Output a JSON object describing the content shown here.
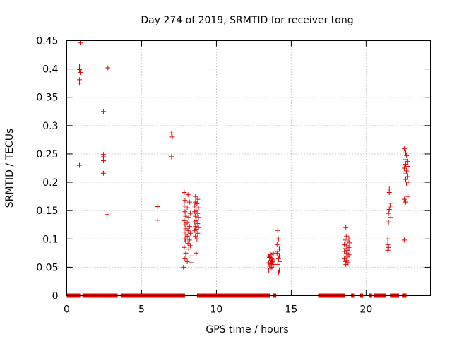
{
  "chart_data": {
    "type": "scatter",
    "title": "Day 274 of 2019, SRMTID for receiver tong",
    "xlabel": "GPS time / hours",
    "ylabel": "SRMTID / TECUs",
    "xlim": [
      0,
      24.3
    ],
    "ylim": [
      0,
      0.45
    ],
    "xticks": [
      0,
      5,
      10,
      15,
      20
    ],
    "yticks": [
      0,
      0.05,
      0.1,
      0.15,
      0.2,
      0.25,
      0.3,
      0.35,
      0.4,
      0.45
    ],
    "xtick_labels": [
      "0",
      "5",
      "10",
      "15",
      "20"
    ],
    "ytick_labels": [
      "0",
      "0.05",
      "0.1",
      "0.15",
      "0.2",
      "0.25",
      "0.3",
      "0.35",
      "0.4",
      "0.45"
    ],
    "grid": true,
    "marker": "+",
    "marker_color": "#e00000",
    "series": [
      {
        "name": "SRMTID",
        "points": [
          [
            0.9,
            0.446
          ],
          [
            0.85,
            0.405
          ],
          [
            0.85,
            0.399
          ],
          [
            0.9,
            0.394
          ],
          [
            0.85,
            0.381
          ],
          [
            0.85,
            0.375
          ],
          [
            0.85,
            0.23
          ],
          [
            2.45,
            0.325
          ],
          [
            2.45,
            0.249
          ],
          [
            2.45,
            0.245
          ],
          [
            2.45,
            0.238
          ],
          [
            2.45,
            0.216
          ],
          [
            2.75,
            0.402
          ],
          [
            2.7,
            0.143
          ],
          [
            6.05,
            0.157
          ],
          [
            6.05,
            0.133
          ],
          [
            7.0,
            0.287
          ],
          [
            7.05,
            0.28
          ],
          [
            7.0,
            0.245
          ],
          [
            7.85,
            0.182
          ],
          [
            8.1,
            0.178
          ],
          [
            7.9,
            0.168
          ],
          [
            8.2,
            0.165
          ],
          [
            7.85,
            0.158
          ],
          [
            8.05,
            0.155
          ],
          [
            7.9,
            0.148
          ],
          [
            8.25,
            0.145
          ],
          [
            7.95,
            0.14
          ],
          [
            8.15,
            0.138
          ],
          [
            7.85,
            0.132
          ],
          [
            8.05,
            0.128
          ],
          [
            7.9,
            0.125
          ],
          [
            8.2,
            0.122
          ],
          [
            7.95,
            0.118
          ],
          [
            8.1,
            0.115
          ],
          [
            7.85,
            0.112
          ],
          [
            8.25,
            0.11
          ],
          [
            7.95,
            0.108
          ],
          [
            8.05,
            0.105
          ],
          [
            7.9,
            0.1
          ],
          [
            8.2,
            0.098
          ],
          [
            7.95,
            0.095
          ],
          [
            8.1,
            0.092
          ],
          [
            8.25,
            0.088
          ],
          [
            7.85,
            0.085
          ],
          [
            8.15,
            0.082
          ],
          [
            7.95,
            0.075
          ],
          [
            8.3,
            0.07
          ],
          [
            7.9,
            0.065
          ],
          [
            8.05,
            0.06
          ],
          [
            8.3,
            0.058
          ],
          [
            7.8,
            0.05
          ],
          [
            8.6,
            0.175
          ],
          [
            8.75,
            0.17
          ],
          [
            8.6,
            0.165
          ],
          [
            8.7,
            0.162
          ],
          [
            8.55,
            0.158
          ],
          [
            8.8,
            0.155
          ],
          [
            8.65,
            0.15
          ],
          [
            8.55,
            0.148
          ],
          [
            8.75,
            0.145
          ],
          [
            8.6,
            0.14
          ],
          [
            8.8,
            0.138
          ],
          [
            8.65,
            0.132
          ],
          [
            8.55,
            0.13
          ],
          [
            8.75,
            0.127
          ],
          [
            8.6,
            0.122
          ],
          [
            8.8,
            0.12
          ],
          [
            8.65,
            0.117
          ],
          [
            8.55,
            0.115
          ],
          [
            8.75,
            0.11
          ],
          [
            8.6,
            0.105
          ],
          [
            8.7,
            0.1
          ],
          [
            8.65,
            0.075
          ],
          [
            13.5,
            0.07
          ],
          [
            13.65,
            0.072
          ],
          [
            13.8,
            0.075
          ],
          [
            13.55,
            0.067
          ],
          [
            13.7,
            0.065
          ],
          [
            13.6,
            0.062
          ],
          [
            13.75,
            0.06
          ],
          [
            13.5,
            0.058
          ],
          [
            13.65,
            0.056
          ],
          [
            13.8,
            0.055
          ],
          [
            13.55,
            0.052
          ],
          [
            13.7,
            0.05
          ],
          [
            13.6,
            0.048
          ],
          [
            13.5,
            0.045
          ],
          [
            13.75,
            0.063
          ],
          [
            13.55,
            0.068
          ],
          [
            13.7,
            0.058
          ],
          [
            14.1,
            0.115
          ],
          [
            14.15,
            0.1
          ],
          [
            14.05,
            0.09
          ],
          [
            14.2,
            0.082
          ],
          [
            14.1,
            0.078
          ],
          [
            14.05,
            0.075
          ],
          [
            14.2,
            0.07
          ],
          [
            14.15,
            0.065
          ],
          [
            14.25,
            0.06
          ],
          [
            14.1,
            0.055
          ],
          [
            14.2,
            0.045
          ],
          [
            14.15,
            0.04
          ],
          [
            18.65,
            0.12
          ],
          [
            18.7,
            0.105
          ],
          [
            18.85,
            0.1
          ],
          [
            18.6,
            0.098
          ],
          [
            18.75,
            0.095
          ],
          [
            18.9,
            0.093
          ],
          [
            18.55,
            0.09
          ],
          [
            18.7,
            0.088
          ],
          [
            18.85,
            0.085
          ],
          [
            18.6,
            0.083
          ],
          [
            18.75,
            0.08
          ],
          [
            18.55,
            0.078
          ],
          [
            18.7,
            0.075
          ],
          [
            18.85,
            0.072
          ],
          [
            18.6,
            0.07
          ],
          [
            18.75,
            0.068
          ],
          [
            18.55,
            0.065
          ],
          [
            18.7,
            0.062
          ],
          [
            18.6,
            0.06
          ],
          [
            18.8,
            0.058
          ],
          [
            18.65,
            0.055
          ],
          [
            21.55,
            0.188
          ],
          [
            21.55,
            0.182
          ],
          [
            21.65,
            0.163
          ],
          [
            21.6,
            0.158
          ],
          [
            21.55,
            0.152
          ],
          [
            21.5,
            0.145
          ],
          [
            21.65,
            0.138
          ],
          [
            21.5,
            0.13
          ],
          [
            21.45,
            0.1
          ],
          [
            21.45,
            0.09
          ],
          [
            21.5,
            0.085
          ],
          [
            21.45,
            0.08
          ],
          [
            22.55,
            0.259
          ],
          [
            22.65,
            0.252
          ],
          [
            22.7,
            0.247
          ],
          [
            22.6,
            0.24
          ],
          [
            22.75,
            0.237
          ],
          [
            22.65,
            0.232
          ],
          [
            22.8,
            0.228
          ],
          [
            22.55,
            0.225
          ],
          [
            22.7,
            0.22
          ],
          [
            22.6,
            0.215
          ],
          [
            22.75,
            0.21
          ],
          [
            22.65,
            0.205
          ],
          [
            22.8,
            0.2
          ],
          [
            22.7,
            0.197
          ],
          [
            22.55,
            0.17
          ],
          [
            22.65,
            0.165
          ],
          [
            22.8,
            0.175
          ],
          [
            22.55,
            0.098
          ]
        ]
      }
    ],
    "baseline_segments": [
      [
        0,
        0.9
      ],
      [
        1.05,
        3.4
      ],
      [
        3.6,
        7.9
      ],
      [
        8.7,
        13.6
      ],
      [
        13.8,
        14.0
      ],
      [
        16.8,
        18.6
      ],
      [
        19.0,
        19.2
      ],
      [
        19.6,
        19.8
      ],
      [
        20.2,
        20.4
      ],
      [
        20.5,
        21.3
      ],
      [
        21.6,
        22.2
      ],
      [
        22.4,
        22.7
      ]
    ]
  }
}
